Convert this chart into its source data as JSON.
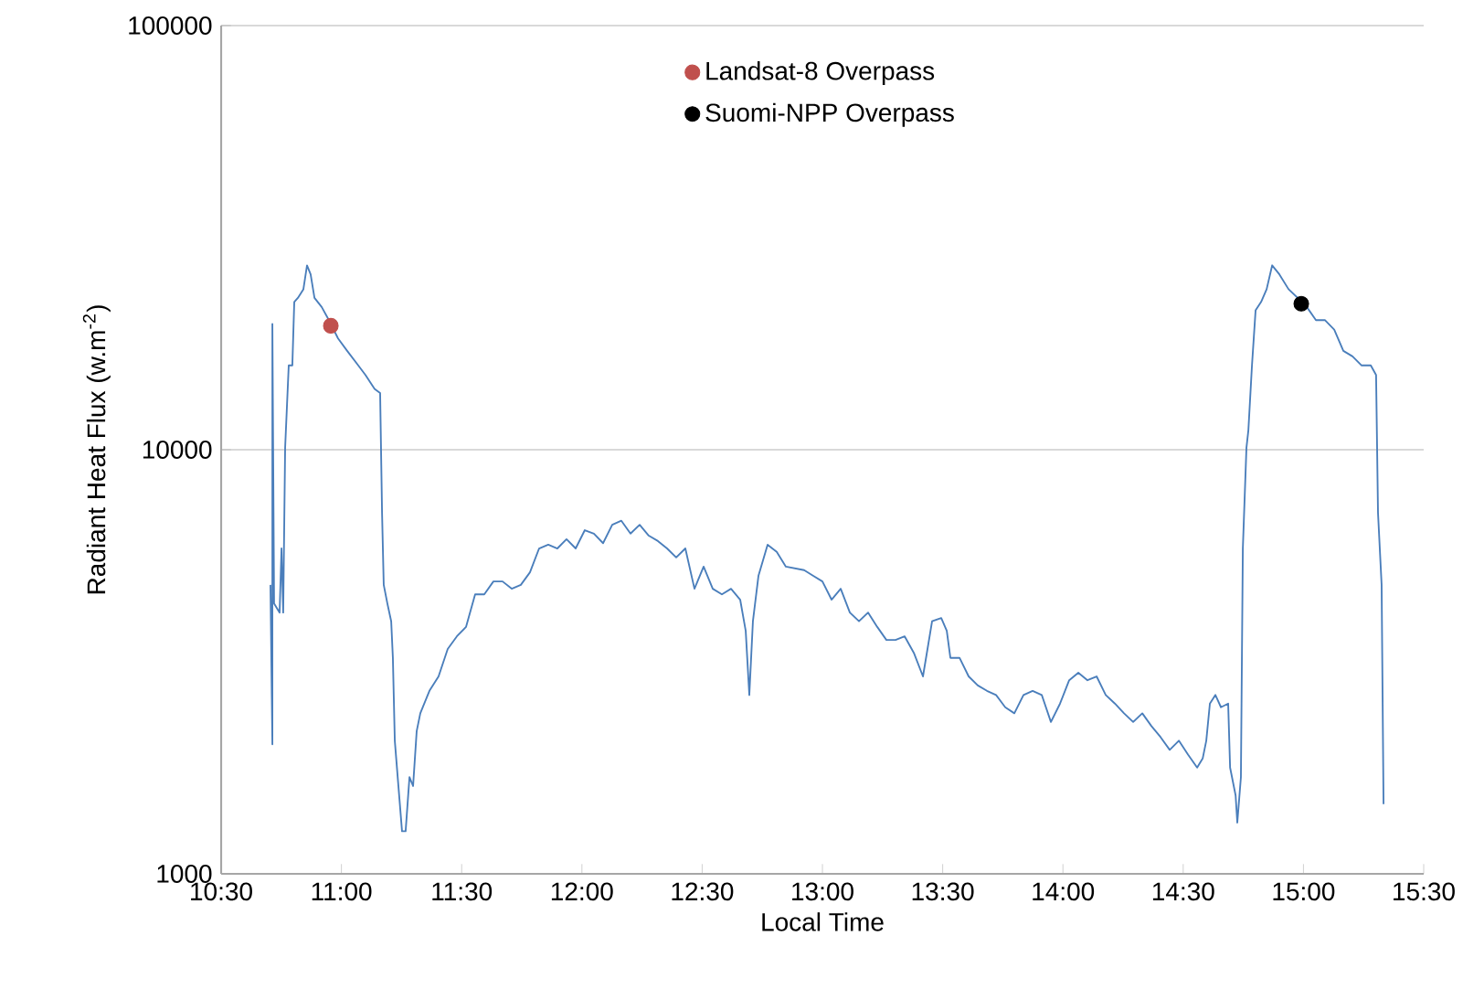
{
  "chart_data": {
    "type": "line",
    "xlabel": "Local Time",
    "ylabel": "Radiant Heat Flux (w.m$^{-2}$)",
    "log": "y",
    "grid": "y",
    "legend": "top",
    "xlim": [
      10.5,
      15.5
    ],
    "ylim": [
      1000,
      100000
    ],
    "xticks": [
      {
        "value": 10.5,
        "label": "10:30"
      },
      {
        "value": 11,
        "label": "11:00"
      },
      {
        "value": 11.5,
        "label": "11:30"
      },
      {
        "value": 12,
        "label": "12:00"
      },
      {
        "value": 12.5,
        "label": "12:30"
      },
      {
        "value": 13,
        "label": "13:00"
      },
      {
        "value": 13.5,
        "label": "13:30"
      },
      {
        "value": 14,
        "label": "14:00"
      },
      {
        "value": 14.5,
        "label": "14:30"
      },
      {
        "value": 15,
        "label": "15:00"
      },
      {
        "value": 15.5,
        "label": "15:30"
      }
    ],
    "yticks": [
      1000,
      10000,
      100000
    ],
    "series": [
      {
        "color": "#4a7ebb",
        "x": [
          10.705,
          10.713,
          10.713,
          10.72,
          10.743,
          10.751,
          10.758,
          10.766,
          10.781,
          10.796,
          10.804,
          10.819,
          10.842,
          10.857,
          10.872,
          10.888,
          10.918,
          10.948,
          10.986,
          11.024,
          11.07,
          11.1,
          11.138,
          11.161,
          11.169,
          11.176,
          11.191,
          11.207,
          11.214,
          11.222,
          11.237,
          11.252,
          11.267,
          11.283,
          11.298,
          11.313,
          11.328,
          11.366,
          11.404,
          11.442,
          11.48,
          11.518,
          11.556,
          11.594,
          11.632,
          11.67,
          11.708,
          11.746,
          11.784,
          11.822,
          11.86,
          11.898,
          11.936,
          11.974,
          12.012,
          12.05,
          12.088,
          12.126,
          12.164,
          12.202,
          12.24,
          12.278,
          12.316,
          12.354,
          12.392,
          12.43,
          12.468,
          12.506,
          12.544,
          12.582,
          12.62,
          12.658,
          12.681,
          12.696,
          12.711,
          12.734,
          12.772,
          12.81,
          12.848,
          12.924,
          12.962,
          13.0,
          13.038,
          13.076,
          13.114,
          13.152,
          13.19,
          13.228,
          13.266,
          13.304,
          13.342,
          13.38,
          13.418,
          13.456,
          13.494,
          13.517,
          13.532,
          13.57,
          13.608,
          13.646,
          13.684,
          13.722,
          13.76,
          13.798,
          13.836,
          13.874,
          13.912,
          13.95,
          13.988,
          14.026,
          14.064,
          14.102,
          14.14,
          14.178,
          14.216,
          14.254,
          14.292,
          14.33,
          14.368,
          14.406,
          14.444,
          14.482,
          14.52,
          14.558,
          14.581,
          14.596,
          14.611,
          14.634,
          14.657,
          14.687,
          14.695,
          14.718,
          14.725,
          14.74,
          14.748,
          14.763,
          14.771,
          14.786,
          14.801,
          14.824,
          14.847,
          14.87,
          14.9,
          14.938,
          14.976,
          15.014,
          15.052,
          15.09,
          15.128,
          15.166,
          15.204,
          15.242,
          15.28,
          15.302,
          15.31,
          15.325,
          15.333
        ],
        "values": [
          4800,
          2020,
          19800,
          4340,
          4130,
          5850,
          4130,
          10100,
          15800,
          15800,
          22300,
          22800,
          23900,
          27200,
          25900,
          22800,
          21700,
          20200,
          18300,
          17100,
          15800,
          15000,
          13900,
          13600,
          7100,
          4800,
          4340,
          3940,
          3230,
          2060,
          1610,
          1260,
          1260,
          1690,
          1610,
          2170,
          2390,
          2700,
          2920,
          3390,
          3630,
          3820,
          4560,
          4560,
          4890,
          4890,
          4700,
          4800,
          5140,
          5850,
          5970,
          5850,
          6150,
          5850,
          6460,
          6340,
          6020,
          6650,
          6800,
          6340,
          6650,
          6270,
          6090,
          5850,
          5570,
          5850,
          4700,
          5300,
          4700,
          4560,
          4700,
          4430,
          3740,
          2640,
          3940,
          5040,
          5970,
          5740,
          5300,
          5200,
          5040,
          4890,
          4430,
          4700,
          4130,
          3940,
          4130,
          3820,
          3560,
          3560,
          3630,
          3320,
          2920,
          3940,
          4010,
          3740,
          3230,
          3230,
          2920,
          2780,
          2700,
          2640,
          2470,
          2390,
          2640,
          2700,
          2640,
          2280,
          2520,
          2860,
          2980,
          2860,
          2920,
          2640,
          2520,
          2390,
          2280,
          2390,
          2230,
          2100,
          1960,
          2060,
          1910,
          1780,
          1870,
          2060,
          2520,
          2640,
          2470,
          2520,
          1780,
          1530,
          1320,
          1690,
          5850,
          10100,
          11100,
          15800,
          21300,
          22300,
          23900,
          27200,
          25900,
          23900,
          22800,
          21700,
          20200,
          20200,
          19200,
          17100,
          16600,
          15800,
          15800,
          15000,
          7100,
          4800,
          1460
        ]
      },
      {
        "type": "scatter",
        "name": "Landsat-8 Overpass",
        "color": "#c0504d",
        "x": [
          10.956
        ],
        "values": [
          19600
        ]
      },
      {
        "type": "scatter",
        "name": "Suomi-NPP Overpass",
        "color": "#000000",
        "x": [
          14.991
        ],
        "values": [
          22100
        ]
      }
    ]
  }
}
